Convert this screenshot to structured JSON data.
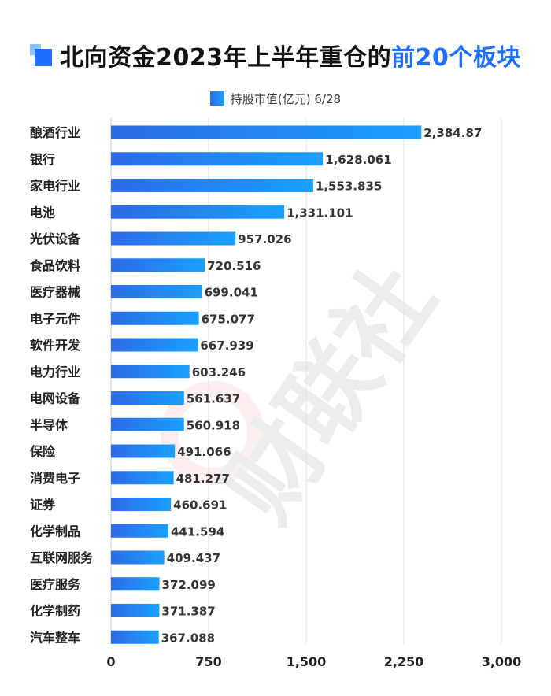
{
  "title": {
    "main": "北向资金2023年上半年重仓的",
    "accent": "前20个板块"
  },
  "legend": {
    "label": "持股市值(亿元) 6/28"
  },
  "watermark": {
    "text": "财联社"
  },
  "colors": {
    "bar_start": "#2d6be6",
    "bar_end": "#1aa0ff",
    "accent": "#1f6fff"
  },
  "chart_data": {
    "type": "bar",
    "orientation": "horizontal",
    "categories": [
      "酿酒行业",
      "银行",
      "家电行业",
      "电池",
      "光伏设备",
      "食品饮料",
      "医疗器械",
      "电子元件",
      "软件开发",
      "电力行业",
      "电网设备",
      "半导体",
      "保险",
      "消费电子",
      "证券",
      "化学制品",
      "互联网服务",
      "医疗服务",
      "化学制药",
      "汽车整车"
    ],
    "values": [
      2384.87,
      1628.061,
      1553.835,
      1331.101,
      957.026,
      720.516,
      699.041,
      675.077,
      667.939,
      603.246,
      561.637,
      560.918,
      491.066,
      481.277,
      460.691,
      441.594,
      409.437,
      372.099,
      371.387,
      367.088
    ],
    "value_labels": [
      "2,384.87",
      "1,628.061",
      "1,553.835",
      "1,331.101",
      "957.026",
      "720.516",
      "699.041",
      "675.077",
      "667.939",
      "603.246",
      "561.637",
      "560.918",
      "491.066",
      "481.277",
      "460.691",
      "441.594",
      "409.437",
      "372.099",
      "371.387",
      "367.088"
    ],
    "series": [
      {
        "name": "持股市值(亿元) 6/28"
      }
    ],
    "xlim": [
      0,
      3000
    ],
    "xticks": [
      0,
      750,
      1500,
      2250,
      3000
    ],
    "xtick_labels": [
      "0",
      "750",
      "1,500",
      "2,250",
      "3,000"
    ],
    "grid": true,
    "legend_position": "top-center"
  }
}
